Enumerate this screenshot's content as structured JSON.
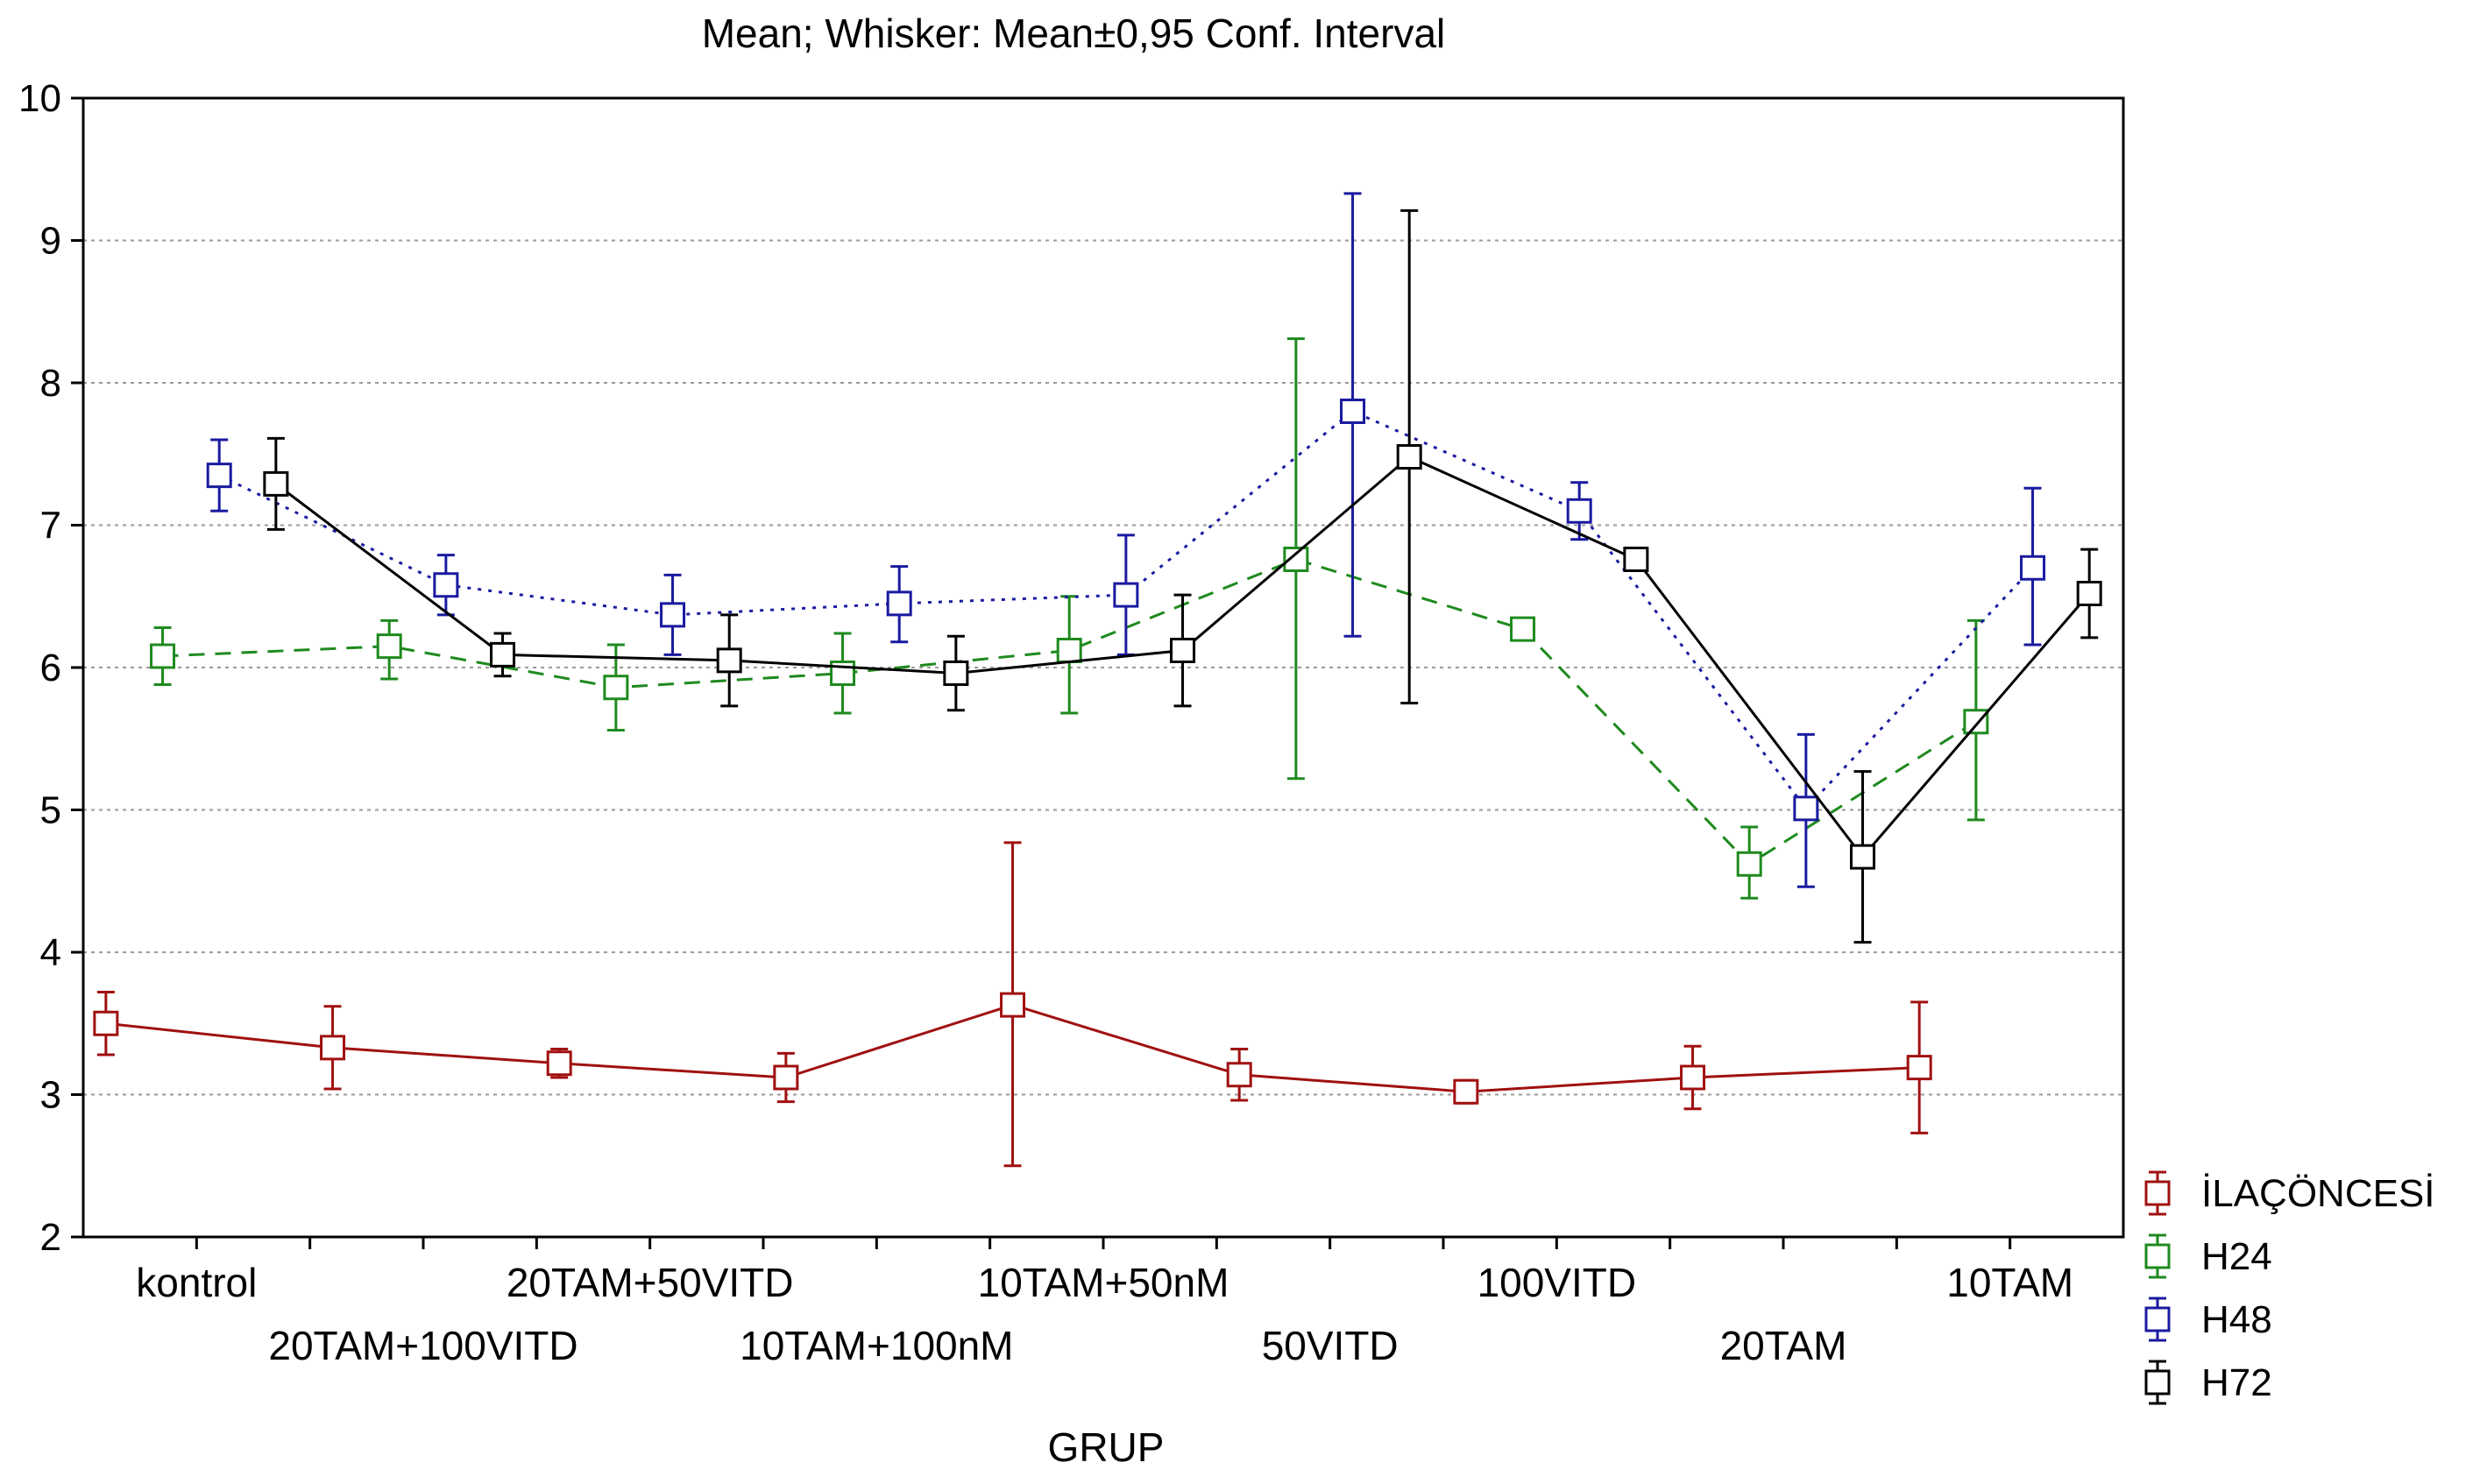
{
  "chart_data": {
    "type": "line",
    "title": "Mean; Whisker: Mean±0,95 Conf. Interval",
    "xlabel": "GRUP",
    "ylabel": "",
    "ylim": [
      2,
      10
    ],
    "y_ticks": [
      2,
      3,
      4,
      5,
      6,
      7,
      8,
      9,
      10
    ],
    "grid": true,
    "legend_position": "right",
    "categories": [
      "kontrol",
      "20TAM+100VITD",
      "20TAM+50VITD",
      "10TAM+100nM",
      "10TAM+50nM",
      "50VITD",
      "100VITD",
      "20TAM",
      "10TAM"
    ],
    "series": [
      {
        "name": "İLAÇÖNCESİ",
        "color": "#a01010",
        "values": [
          3.5,
          3.33,
          3.22,
          3.12,
          3.63,
          3.14,
          3.02,
          3.12,
          3.19
        ],
        "ci_lower": [
          3.28,
          3.04,
          3.12,
          2.95,
          2.5,
          2.96,
          2.94,
          2.9,
          2.73
        ],
        "ci_upper": [
          3.72,
          3.62,
          3.32,
          3.29,
          4.77,
          3.32,
          3.1,
          3.34,
          3.65
        ]
      },
      {
        "name": "H24",
        "color": "#1e8a1e",
        "values": [
          6.08,
          6.15,
          5.86,
          5.96,
          6.12,
          6.76,
          6.27,
          4.62,
          5.62
        ],
        "ci_lower": [
          5.88,
          5.92,
          5.56,
          5.68,
          5.68,
          5.22,
          6.27,
          4.38,
          4.93
        ],
        "ci_upper": [
          6.28,
          6.33,
          6.16,
          6.24,
          6.5,
          8.31,
          6.27,
          4.88,
          6.33
        ]
      },
      {
        "name": "H48",
        "color": "#1a1aa0",
        "values": [
          7.35,
          6.58,
          6.37,
          6.45,
          6.51,
          7.8,
          7.1,
          5.01,
          6.7
        ],
        "ci_lower": [
          7.1,
          6.37,
          6.09,
          6.18,
          6.09,
          6.22,
          6.9,
          4.46,
          6.16
        ],
        "ci_upper": [
          7.6,
          6.79,
          6.65,
          6.71,
          6.93,
          9.33,
          7.3,
          5.53,
          7.26
        ]
      },
      {
        "name": "H72",
        "color": "#000000",
        "values": [
          7.29,
          6.09,
          6.05,
          5.96,
          6.12,
          7.48,
          6.76,
          4.67,
          6.52
        ],
        "ci_lower": [
          6.97,
          5.94,
          5.73,
          5.7,
          5.73,
          5.75,
          6.68,
          4.07,
          6.21
        ],
        "ci_upper": [
          7.61,
          6.24,
          6.37,
          6.22,
          6.51,
          9.21,
          6.84,
          5.27,
          6.83
        ]
      }
    ]
  }
}
